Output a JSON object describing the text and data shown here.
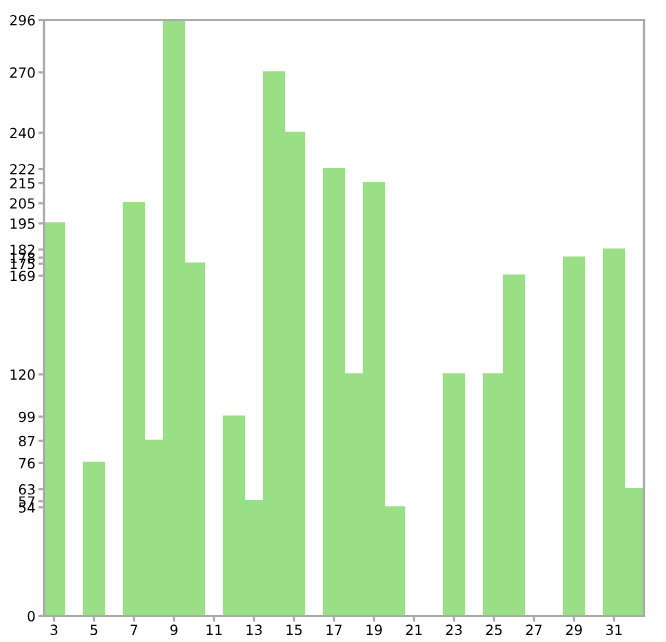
{
  "chart_data": {
    "type": "bar",
    "categories": [
      "3",
      null,
      "5",
      null,
      "7",
      null,
      "9",
      null,
      "11",
      null,
      "13",
      null,
      "15",
      null,
      "17",
      null,
      "19",
      null,
      "21",
      null,
      "23",
      null,
      "25",
      null,
      "27",
      null,
      "29",
      null,
      "31",
      null
    ],
    "series": [
      {
        "color": "#9ade86",
        "values": [
          195,
          null,
          76,
          null,
          205,
          87,
          296,
          175,
          null,
          99,
          57,
          270,
          240,
          null,
          222,
          120,
          215,
          54,
          0,
          null,
          120,
          null,
          120,
          169,
          0,
          null,
          178,
          null,
          182,
          63
        ]
      }
    ],
    "ylim": [
      0,
      296
    ],
    "yticks": [
      0,
      54,
      57,
      63,
      76,
      87,
      99,
      120,
      169,
      175,
      178,
      182,
      195,
      205,
      215,
      222,
      240,
      270,
      296
    ],
    "grid": false
  }
}
